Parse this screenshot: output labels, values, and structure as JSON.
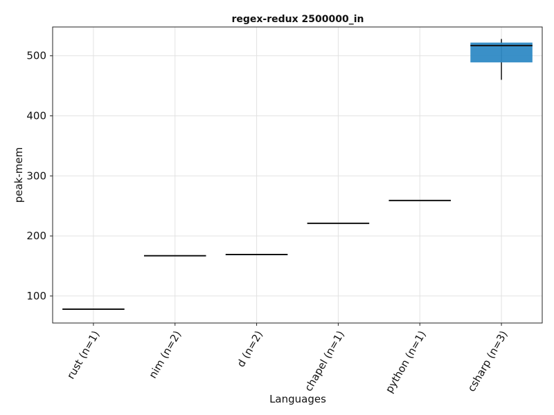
{
  "chart_data": {
    "type": "box",
    "title": "regex-redux 2500000_in",
    "xlabel": "Languages",
    "ylabel": "peak-mem",
    "categories": [
      "rust (n=1)",
      "nim (n=2)",
      "d (n=2)",
      "chapel (n=1)",
      "python (n=1)",
      "csharp (n=3)"
    ],
    "ylim": [
      55,
      548
    ],
    "yticks": [
      100,
      200,
      300,
      400,
      500
    ],
    "grid": true,
    "box_color": "#2f8ac5",
    "series": [
      {
        "category": "rust (n=1)",
        "q1": 78,
        "median": 78,
        "q3": 78,
        "min": 78,
        "max": 78
      },
      {
        "category": "nim (n=2)",
        "q1": 167,
        "median": 167,
        "q3": 167,
        "min": 167,
        "max": 167
      },
      {
        "category": "d (n=2)",
        "q1": 168,
        "median": 169,
        "q3": 169,
        "min": 168,
        "max": 169
      },
      {
        "category": "chapel (n=1)",
        "q1": 221,
        "median": 221,
        "q3": 221,
        "min": 221,
        "max": 221
      },
      {
        "category": "python (n=1)",
        "q1": 259,
        "median": 259,
        "q3": 259,
        "min": 259,
        "max": 259
      },
      {
        "category": "csharp (n=3)",
        "q1": 489,
        "median": 517,
        "q3": 522,
        "min": 460,
        "max": 528
      }
    ]
  }
}
